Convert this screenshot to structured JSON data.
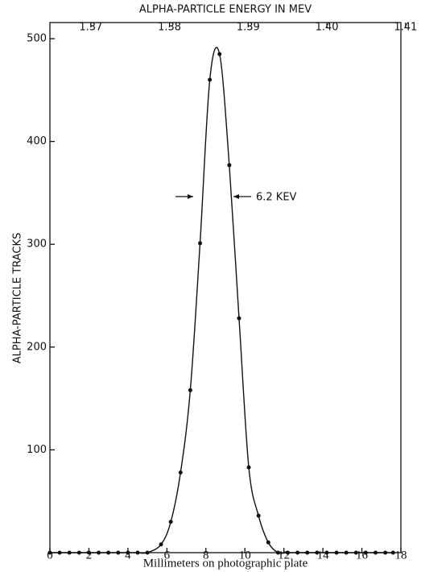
{
  "chart_data": {
    "type": "scatter",
    "title": "ALPHA-PARTICLE ENERGY IN MEV",
    "x_label": "Millimeters on photographic plate",
    "y_label": "ALPHA-PARTICLE TRACKS",
    "annotation": "6.2 KEV",
    "x": [
      0,
      0.5,
      1,
      1.5,
      2,
      2.5,
      3,
      3.5,
      4,
      4.5,
      5,
      5.7,
      6.2,
      6.7,
      7.2,
      7.7,
      8.2,
      8.7,
      9.2,
      9.7,
      10.2,
      10.7,
      11.2,
      11.7,
      12.2,
      12.7,
      13.2,
      13.7,
      14.2,
      14.7,
      15.2,
      15.7,
      16.2,
      16.7,
      17.2,
      17.6
    ],
    "values": [
      0,
      0,
      0,
      0,
      0,
      0,
      0,
      0,
      0,
      0,
      0,
      8,
      30,
      78,
      158,
      301,
      460,
      485,
      377,
      228,
      83,
      36,
      10,
      0,
      0,
      0,
      0,
      0,
      0,
      0,
      0,
      0,
      0,
      0,
      0,
      0
    ],
    "color": "#111111",
    "xlim": [
      0,
      18
    ],
    "xticks": [
      0,
      2,
      4,
      6,
      8,
      10,
      12,
      14,
      16,
      18
    ],
    "ylim": [
      0,
      500
    ],
    "yticks": [
      100,
      200,
      300,
      400,
      500
    ],
    "x2lim": [
      1.3648,
      1.4094
    ],
    "x2ticks": [
      1.37,
      1.38,
      1.39,
      {
        "value": 1.4,
        "label": "1.40"
      },
      1.41
    ]
  }
}
